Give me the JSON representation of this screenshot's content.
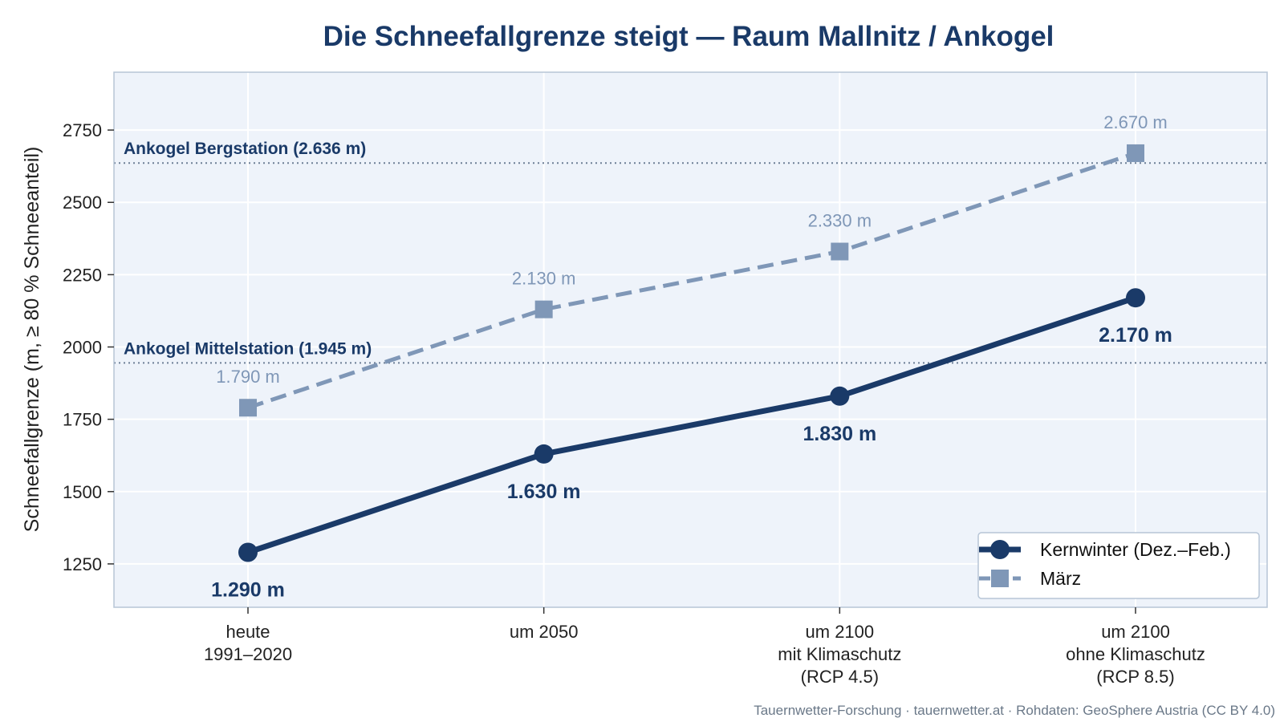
{
  "chart_data": {
    "type": "line",
    "title": "Die Schneefallgrenze steigt — Raum Mallnitz / Ankogel",
    "ylabel": "Schneefallgrenze (m, ≥ 80 % Schneeanteil)",
    "xlabel": "",
    "ylim": [
      1100,
      2950
    ],
    "yticks": [
      1250,
      1500,
      1750,
      2000,
      2250,
      2500,
      2750
    ],
    "grid": true,
    "legend_position": "bottom-right",
    "categories": [
      [
        "heute",
        "1991–2020"
      ],
      [
        "um 2050"
      ],
      [
        "um 2100",
        "mit Klimaschutz",
        "(RCP 4.5)"
      ],
      [
        "um 2100",
        "ohne Klimaschutz",
        "(RCP 8.5)"
      ]
    ],
    "series": [
      {
        "name": "Kernwinter (Dez.–Feb.)",
        "values": [
          1290,
          1630,
          1830,
          2170
        ],
        "labels": [
          "1.290 m",
          "1.630 m",
          "1.830 m",
          "2.170 m"
        ],
        "color": "#1a3a68",
        "style": "solid",
        "marker": "circle",
        "label_position": "below"
      },
      {
        "name": "März",
        "values": [
          1790,
          2130,
          2330,
          2670
        ],
        "labels": [
          "1.790 m",
          "2.130 m",
          "2.330 m",
          "2.670 m"
        ],
        "color": "#7f97b7",
        "style": "dashed",
        "marker": "square",
        "label_position": "above"
      }
    ],
    "reference_lines": [
      {
        "y": 2636,
        "label": "Ankogel Bergstation (2.636 m)"
      },
      {
        "y": 1945,
        "label": "Ankogel Mittelstation (1.945 m)"
      }
    ]
  },
  "footer": "Tauernwetter-Forschung · tauernwetter.at · Rohdaten: GeoSphere Austria (CC BY 4.0)",
  "colors": {
    "title": "#1a3a68",
    "plot_background": "#eef3fa",
    "plot_border": "#b7c5d6",
    "grid": "#ffffff",
    "reference_line": "#6d7f96",
    "reference_label": "#1a3a68"
  }
}
